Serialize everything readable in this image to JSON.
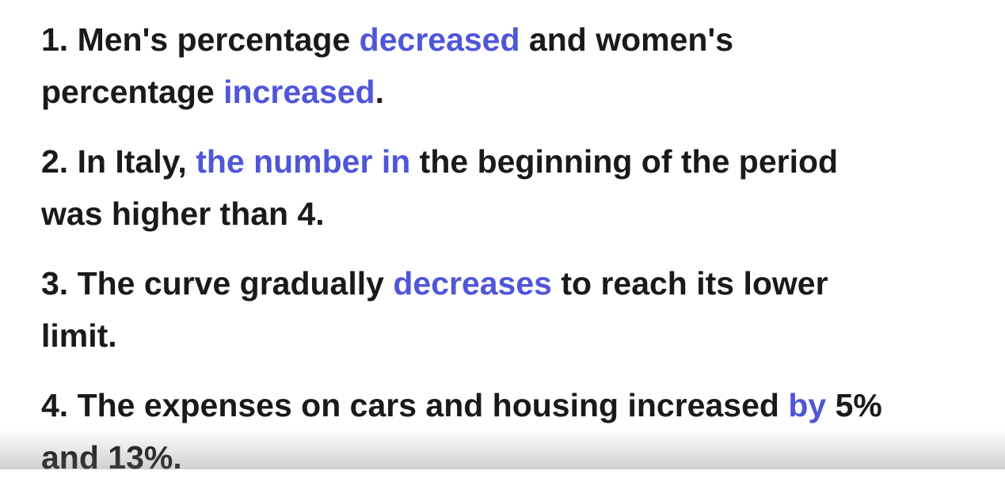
{
  "items": [
    {
      "lines": [
        {
          "segments": [
            {
              "text": "1. Men's percentage "
            },
            {
              "text": "decreased",
              "color": "#4f56d8"
            },
            {
              "text": " and women's"
            }
          ]
        },
        {
          "segments": [
            {
              "text": "percentage "
            },
            {
              "text": "increased",
              "color": "#4f56d8"
            },
            {
              "text": "."
            }
          ]
        }
      ]
    },
    {
      "lines": [
        {
          "segments": [
            {
              "text": "2. In Italy, "
            },
            {
              "text": "the number in",
              "color": "#4f56d8"
            },
            {
              "text": " the beginning of the period"
            }
          ]
        },
        {
          "segments": [
            {
              "text": "was higher than 4."
            }
          ]
        }
      ]
    },
    {
      "lines": [
        {
          "segments": [
            {
              "text": "3. The curve gradually "
            },
            {
              "text": "decreases",
              "color": "#4f56d8"
            },
            {
              "text": " to reach its lower"
            }
          ]
        },
        {
          "segments": [
            {
              "text": "limit."
            }
          ]
        }
      ]
    },
    {
      "lines": [
        {
          "segments": [
            {
              "text": "4. The expenses on cars and housing increased "
            },
            {
              "text": "by",
              "color": "#4f56d8"
            },
            {
              "text": " 5%"
            }
          ]
        },
        {
          "segments": [
            {
              "text": "and 13%."
            }
          ]
        }
      ]
    }
  ]
}
